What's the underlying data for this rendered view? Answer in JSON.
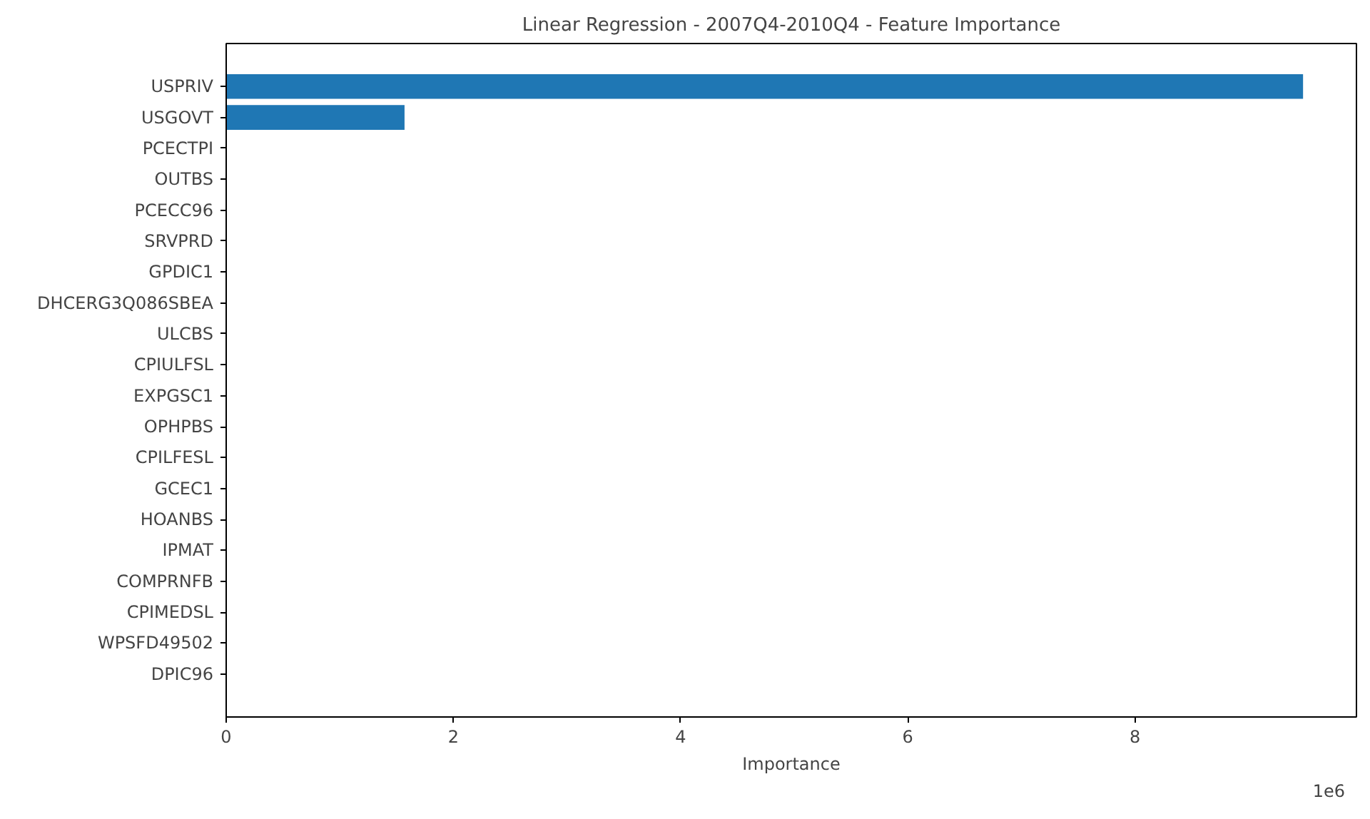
{
  "chart_data": {
    "type": "bar",
    "orientation": "horizontal",
    "title": "Linear Regression - 2007Q4-2010Q4 - Feature Importance",
    "xlabel": "Importance",
    "categories": [
      "USPRIV",
      "USGOVT",
      "PCECTPI",
      "OUTBS",
      "PCECC96",
      "SRVPRD",
      "GPDIC1",
      "DHCERG3Q086SBEA",
      "ULCBS",
      "CPIULFSL",
      "EXPGSC1",
      "OPHPBS",
      "CPILFESL",
      "GCEC1",
      "HOANBS",
      "IPMAT",
      "COMPRNFB",
      "CPIMEDSL",
      "WPSFD49502",
      "DPIC96"
    ],
    "values": [
      9.48,
      1.57,
      0,
      0,
      0,
      0,
      0,
      0,
      0,
      0,
      0,
      0,
      0,
      0,
      0,
      0,
      0,
      0,
      0,
      0
    ],
    "color": "#1f77b4",
    "xlim": [
      0,
      9.95
    ],
    "xticks": [
      0,
      2,
      4,
      6,
      8
    ],
    "grid": false,
    "annotations": [
      "1e6"
    ]
  }
}
